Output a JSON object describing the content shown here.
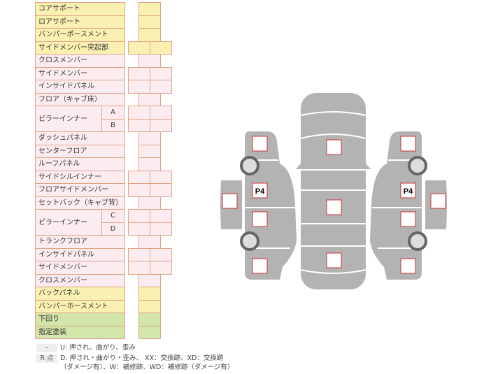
{
  "rows": [
    {
      "label": "コアサポート",
      "color": "y",
      "cells": 1
    },
    {
      "label": "ロアサポート",
      "color": "y",
      "cells": 1
    },
    {
      "label": "バンパーポースメント",
      "color": "y",
      "cells": 1
    },
    {
      "label": "サイドメンバー突起部",
      "color": "y",
      "cells": 2
    },
    {
      "label": "クロスメンバー",
      "color": "p",
      "cells": 1
    },
    {
      "label": "サイドメンバー",
      "color": "p",
      "cells": 2
    },
    {
      "label": "インサイドパネル",
      "color": "p",
      "cells": 2
    },
    {
      "label": "フロア（キャブ床）",
      "color": "p",
      "cells": 1
    },
    {
      "label": "ピラーインナー",
      "sub": "A",
      "color": "p",
      "cells": 2
    },
    {
      "label": "",
      "sub": "B",
      "color": "p",
      "cells": 2
    },
    {
      "label": "ダッシュパネル",
      "color": "p",
      "cells": 1
    },
    {
      "label": "センターフロア",
      "color": "p",
      "cells": 1
    },
    {
      "label": "ルーフパネル",
      "color": "p",
      "cells": 1
    },
    {
      "label": "サイドシルインナー",
      "color": "p",
      "cells": 2
    },
    {
      "label": "フロアサイドメンバー",
      "color": "p",
      "cells": 2
    },
    {
      "label": "セットバック（キャブ背）",
      "color": "p",
      "cells": 1
    },
    {
      "label": "ピラーインナー",
      "sub": "C",
      "color": "p",
      "cells": 2
    },
    {
      "label": "",
      "sub": "D",
      "color": "p",
      "cells": 2
    },
    {
      "label": "トランクフロア",
      "color": "p",
      "cells": 1
    },
    {
      "label": "インサイドパネル",
      "color": "p",
      "cells": 2
    },
    {
      "label": "サイドメンバー",
      "color": "p",
      "cells": 2
    },
    {
      "label": "クロスメンバー",
      "color": "p",
      "cells": 1
    },
    {
      "label": "バックパネル",
      "color": "y",
      "cells": 1
    },
    {
      "label": "バンパーホースメント",
      "color": "y",
      "cells": 1
    },
    {
      "label": "下回り",
      "color": "g",
      "cells": 1
    },
    {
      "label": "指定塗装",
      "color": "g",
      "cells": 1
    }
  ],
  "legend": {
    "key1": "-",
    "text1": "U: 押され、曲がり、歪み",
    "key2": "R 点",
    "text2": "D: 押され・曲がり・歪み、 XX：交換跡、XD：交換跡",
    "text3": "（ダメージ有）、W：補修跡、WD：補修跡（ダメージ有）"
  },
  "diagram": {
    "left_mark": "P4",
    "right_mark": "P4",
    "body_color": "#b3b3b3",
    "box_border": "#cc3333"
  }
}
